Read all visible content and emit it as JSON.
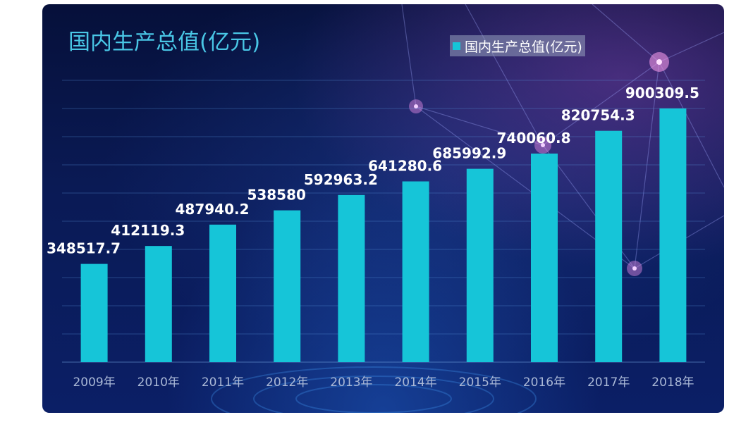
{
  "title": "国内生产总值(亿元)",
  "legend": {
    "label": "国内生产总值(亿元)",
    "color": "#16c5d8"
  },
  "colors": {
    "bar": "#16c5d8",
    "title": "#49c6e5",
    "tick": "#aab8d6",
    "value_label": "#ffffff"
  },
  "chart_data": {
    "type": "bar",
    "title": "国内生产总值(亿元)",
    "categories": [
      "2009年",
      "2010年",
      "2011年",
      "2012年",
      "2013年",
      "2014年",
      "2015年",
      "2016年",
      "2017年",
      "2018年"
    ],
    "series": [
      {
        "name": "国内生产总值(亿元)",
        "values": [
          348517.7,
          412119.3,
          487940.2,
          538580,
          592963.2,
          641280.6,
          685992.9,
          740060.8,
          820754.3,
          900309.5
        ],
        "labels": [
          "348517.7",
          "412119.3",
          "487940.2",
          "538580",
          "592963.2",
          "641280.6",
          "685992.9",
          "740060.8",
          "820754.3",
          "900309.5"
        ]
      }
    ],
    "ylim": [
      0,
      1000000
    ],
    "grid": true,
    "legend_position": "top-right",
    "xlabel": "",
    "ylabel": ""
  }
}
